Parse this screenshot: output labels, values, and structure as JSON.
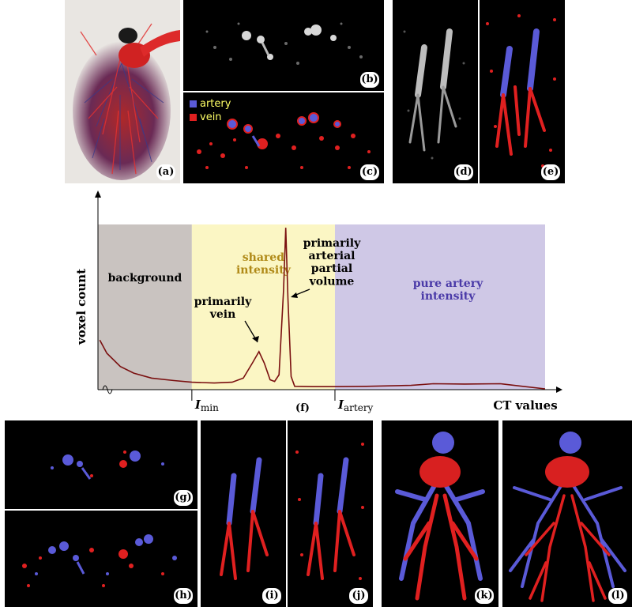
{
  "panel_labels": {
    "a": "(a)",
    "b": "(b)",
    "c": "(c)",
    "d": "(d)",
    "e": "(e)",
    "f": "(f)",
    "g": "(g)",
    "h": "(h)",
    "i": "(i)",
    "j": "(j)",
    "k": "(k)",
    "l": "(l)"
  },
  "legend": {
    "artery": "artery",
    "vein": "vein"
  },
  "colors": {
    "artery": "#5a5ad8",
    "vein": "#e02020",
    "background_region": "#c9c3c0",
    "shared_region": "#fbf6c4",
    "artery_region": "#cfc8e6",
    "curve": "#7a1010",
    "shared_text": "#b08a18",
    "artery_text": "#4a3aa8"
  },
  "chart_data": {
    "type": "line",
    "xlabel": "CT values",
    "ylabel": "voxel count",
    "regions": [
      {
        "label": "background",
        "from": 0.0,
        "to": 0.21
      },
      {
        "label": "shared\nintensity",
        "from": 0.21,
        "to": 0.53
      },
      {
        "label": "pure artery\nintensity",
        "from": 0.53,
        "to": 1.0
      }
    ],
    "thresholds": [
      {
        "label_base": "I",
        "label_sub": "min",
        "at": 0.21
      },
      {
        "label_base": "I",
        "label_sub": "artery",
        "at": 0.53
      }
    ],
    "annotations": [
      {
        "text": "primarily\nvein",
        "points_to": 0.36
      },
      {
        "text": "primarily\narterial\npartial\nvolume",
        "points_to": 0.425
      }
    ],
    "curve": [
      [
        0.004,
        0.3
      ],
      [
        0.02,
        0.22
      ],
      [
        0.05,
        0.14
      ],
      [
        0.08,
        0.1
      ],
      [
        0.12,
        0.07
      ],
      [
        0.17,
        0.055
      ],
      [
        0.21,
        0.045
      ],
      [
        0.26,
        0.04
      ],
      [
        0.3,
        0.045
      ],
      [
        0.325,
        0.07
      ],
      [
        0.345,
        0.16
      ],
      [
        0.36,
        0.23
      ],
      [
        0.372,
        0.16
      ],
      [
        0.385,
        0.06
      ],
      [
        0.395,
        0.05
      ],
      [
        0.405,
        0.09
      ],
      [
        0.415,
        0.6
      ],
      [
        0.42,
        0.98
      ],
      [
        0.425,
        0.55
      ],
      [
        0.432,
        0.08
      ],
      [
        0.44,
        0.02
      ],
      [
        0.48,
        0.018
      ],
      [
        0.53,
        0.018
      ],
      [
        0.6,
        0.02
      ],
      [
        0.7,
        0.026
      ],
      [
        0.75,
        0.036
      ],
      [
        0.82,
        0.034
      ],
      [
        0.9,
        0.036
      ],
      [
        0.95,
        0.02
      ],
      [
        1.0,
        0.005
      ]
    ],
    "grid": false
  }
}
